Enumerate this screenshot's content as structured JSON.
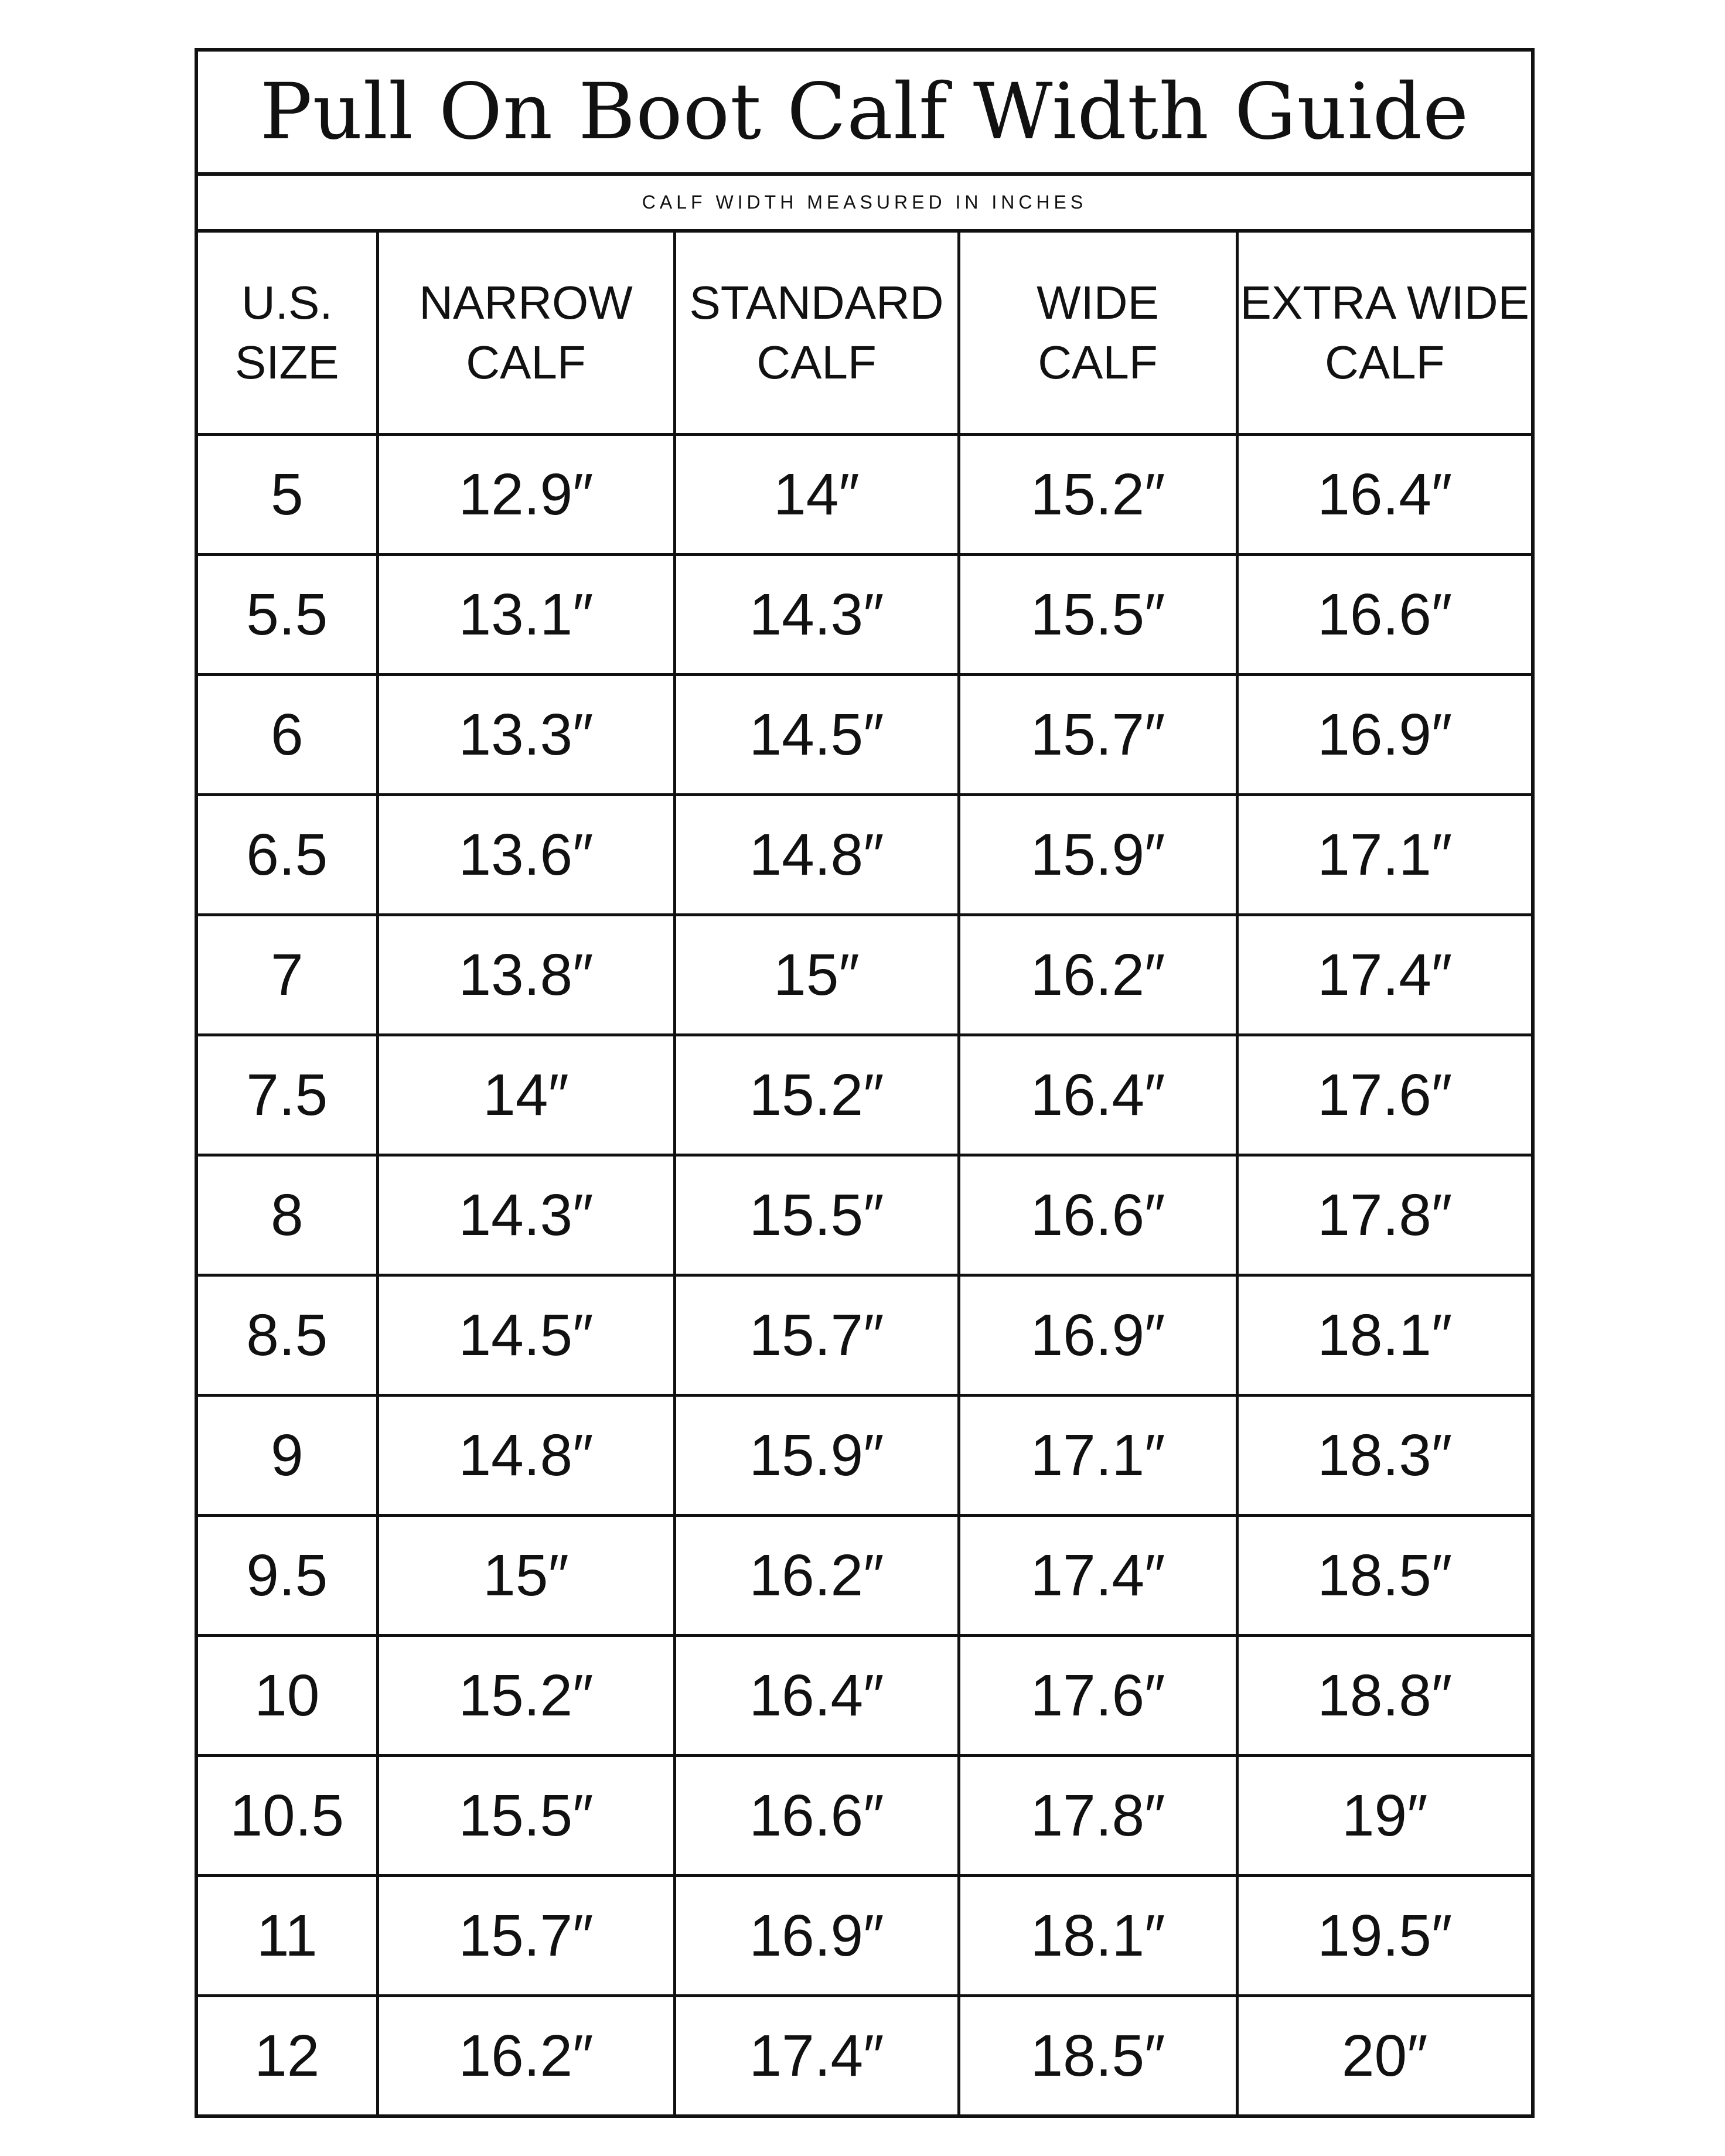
{
  "title": "Pull On Boot Calf Width Guide",
  "subtitle": "CALF WIDTH MEASURED IN INCHES",
  "columns": [
    [
      "U.S.",
      "SIZE"
    ],
    [
      "NARROW",
      "CALF"
    ],
    [
      "STANDARD",
      "CALF"
    ],
    [
      "WIDE",
      "CALF"
    ],
    [
      "EXTRA WIDE",
      "CALF"
    ]
  ],
  "rows": [
    [
      "5",
      "12.9″",
      "14″",
      "15.2″",
      "16.4″"
    ],
    [
      "5.5",
      "13.1″",
      "14.3″",
      "15.5″",
      "16.6″"
    ],
    [
      "6",
      "13.3″",
      "14.5″",
      "15.7″",
      "16.9″"
    ],
    [
      "6.5",
      "13.6″",
      "14.8″",
      "15.9″",
      "17.1″"
    ],
    [
      "7",
      "13.8″",
      "15″",
      "16.2″",
      "17.4″"
    ],
    [
      "7.5",
      "14″",
      "15.2″",
      "16.4″",
      "17.6″"
    ],
    [
      "8",
      "14.3″",
      "15.5″",
      "16.6″",
      "17.8″"
    ],
    [
      "8.5",
      "14.5″",
      "15.7″",
      "16.9″",
      "18.1″"
    ],
    [
      "9",
      "14.8″",
      "15.9″",
      "17.1″",
      "18.3″"
    ],
    [
      "9.5",
      "15″",
      "16.2″",
      "17.4″",
      "18.5″"
    ],
    [
      "10",
      "15.2″",
      "16.4″",
      "17.6″",
      "18.8″"
    ],
    [
      "10.5",
      "15.5″",
      "16.6″",
      "17.8″",
      "19″"
    ],
    [
      "11",
      "15.7″",
      "16.9″",
      "18.1″",
      "19.5″"
    ],
    [
      "12",
      "16.2″",
      "17.4″",
      "18.5″",
      "20″"
    ]
  ]
}
